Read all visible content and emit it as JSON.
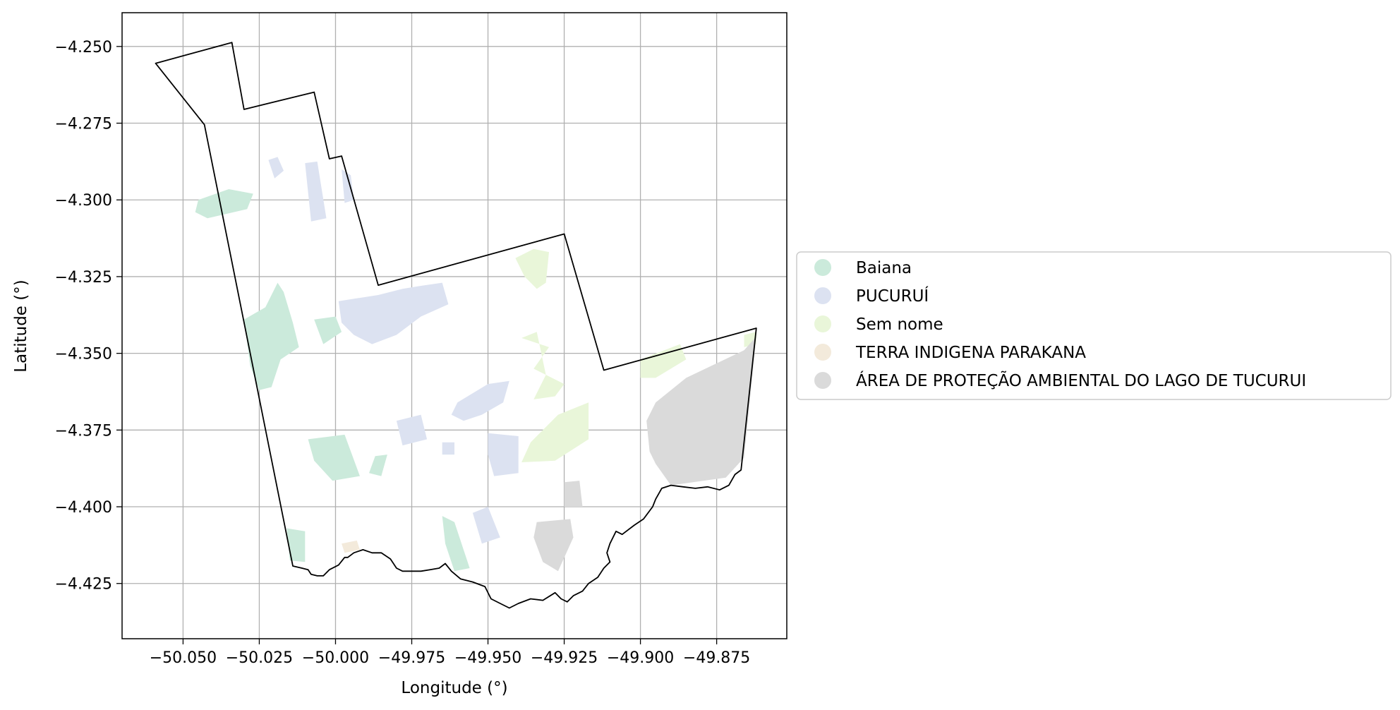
{
  "map": {
    "xlabel": "Longitude (°)",
    "ylabel": "Latitude (°)",
    "xlim": [
      -50.07,
      -49.852
    ],
    "ylim": [
      -4.443,
      -4.239
    ],
    "grid": true,
    "x_ticks": [
      {
        "value": -50.05,
        "label": "−50.050"
      },
      {
        "value": -50.025,
        "label": "−50.025"
      },
      {
        "value": -50.0,
        "label": "−50.000"
      },
      {
        "value": -49.975,
        "label": "−49.975"
      },
      {
        "value": -49.95,
        "label": "−49.950"
      },
      {
        "value": -49.925,
        "label": "−49.925"
      },
      {
        "value": -49.9,
        "label": "−49.900"
      },
      {
        "value": -49.875,
        "label": "−49.875"
      }
    ],
    "y_ticks": [
      {
        "value": -4.25,
        "label": "−4.250"
      },
      {
        "value": -4.275,
        "label": "−4.275"
      },
      {
        "value": -4.3,
        "label": "−4.300"
      },
      {
        "value": -4.325,
        "label": "−4.325"
      },
      {
        "value": -4.35,
        "label": "−4.350"
      },
      {
        "value": -4.375,
        "label": "−4.375"
      },
      {
        "value": -4.4,
        "label": "−4.400"
      },
      {
        "value": -4.425,
        "label": "−4.425"
      }
    ],
    "legend_position": "center-right",
    "boundary": [
      [
        -50.059,
        -4.2555
      ],
      [
        -50.034,
        -4.2487
      ],
      [
        -50.03,
        -4.2705
      ],
      [
        -50.007,
        -4.2649
      ],
      [
        -50.002,
        -4.2866
      ],
      [
        -49.998,
        -4.2857
      ],
      [
        -49.986,
        -4.3278
      ],
      [
        -49.925,
        -4.3111
      ],
      [
        -49.912,
        -4.3555
      ],
      [
        -49.862,
        -4.3418
      ],
      [
        -49.867,
        -4.388
      ],
      [
        -49.869,
        -4.3895
      ],
      [
        -49.871,
        -4.393
      ],
      [
        -49.874,
        -4.3945
      ],
      [
        -49.878,
        -4.3935
      ],
      [
        -49.882,
        -4.394
      ],
      [
        -49.886,
        -4.3935
      ],
      [
        -49.89,
        -4.393
      ],
      [
        -49.893,
        -4.394
      ],
      [
        -49.895,
        -4.3975
      ],
      [
        -49.896,
        -4.4
      ],
      [
        -49.899,
        -4.404
      ],
      [
        -49.902,
        -4.406
      ],
      [
        -49.906,
        -4.409
      ],
      [
        -49.908,
        -4.408
      ],
      [
        -49.91,
        -4.412
      ],
      [
        -49.911,
        -4.415
      ],
      [
        -49.91,
        -4.418
      ],
      [
        -49.912,
        -4.42
      ],
      [
        -49.914,
        -4.423
      ],
      [
        -49.917,
        -4.425
      ],
      [
        -49.919,
        -4.4275
      ],
      [
        -49.922,
        -4.429
      ],
      [
        -49.924,
        -4.431
      ],
      [
        -49.926,
        -4.43
      ],
      [
        -49.928,
        -4.428
      ],
      [
        -49.932,
        -4.4305
      ],
      [
        -49.936,
        -4.43
      ],
      [
        -49.94,
        -4.4315
      ],
      [
        -49.943,
        -4.433
      ],
      [
        -49.946,
        -4.4315
      ],
      [
        -49.949,
        -4.43
      ],
      [
        -49.951,
        -4.426
      ],
      [
        -49.955,
        -4.4245
      ],
      [
        -49.959,
        -4.4235
      ],
      [
        -49.962,
        -4.421
      ],
      [
        -49.964,
        -4.4185
      ],
      [
        -49.966,
        -4.42
      ],
      [
        -49.969,
        -4.4205
      ],
      [
        -49.972,
        -4.421
      ],
      [
        -49.975,
        -4.421
      ],
      [
        -49.978,
        -4.421
      ],
      [
        -49.98,
        -4.42
      ],
      [
        -49.982,
        -4.417
      ],
      [
        -49.985,
        -4.415
      ],
      [
        -49.988,
        -4.415
      ],
      [
        -49.991,
        -4.414
      ],
      [
        -49.994,
        -4.415
      ],
      [
        -49.996,
        -4.4165
      ],
      [
        -49.997,
        -4.4165
      ],
      [
        -49.999,
        -4.419
      ],
      [
        -50.002,
        -4.4205
      ],
      [
        -50.004,
        -4.4225
      ],
      [
        -50.006,
        -4.4225
      ],
      [
        -50.008,
        -4.422
      ],
      [
        -50.009,
        -4.4205
      ],
      [
        -50.011,
        -4.42
      ],
      [
        -50.014,
        -4.4193
      ],
      [
        -50.043,
        -4.2755
      ],
      [
        -50.059,
        -4.2555
      ]
    ],
    "layers": [
      {
        "name": "Baiana",
        "color": "#cbeadb",
        "patches": [
          [
            [
              -50.045,
              -4.3
            ],
            [
              -50.035,
              -4.2965
            ],
            [
              -50.027,
              -4.298
            ],
            [
              -50.029,
              -4.303
            ],
            [
              -50.042,
              -4.306
            ],
            [
              -50.046,
              -4.304
            ]
          ],
          [
            [
              -50.03,
              -4.339
            ],
            [
              -50.023,
              -4.335
            ],
            [
              -50.019,
              -4.327
            ],
            [
              -50.017,
              -4.33
            ],
            [
              -50.014,
              -4.34
            ],
            [
              -50.012,
              -4.348
            ],
            [
              -50.018,
              -4.352
            ],
            [
              -50.021,
              -4.361
            ],
            [
              -50.025,
              -4.362
            ],
            [
              -50.028,
              -4.354
            ]
          ],
          [
            [
              -50.007,
              -4.339
            ],
            [
              -50.0,
              -4.338
            ],
            [
              -49.998,
              -4.343
            ],
            [
              -50.004,
              -4.347
            ]
          ],
          [
            [
              -50.009,
              -4.378
            ],
            [
              -49.997,
              -4.3765
            ],
            [
              -49.992,
              -4.39
            ],
            [
              -50.001,
              -4.3915
            ],
            [
              -50.007,
              -4.385
            ]
          ],
          [
            [
              -49.987,
              -4.3835
            ],
            [
              -49.983,
              -4.383
            ],
            [
              -49.985,
              -4.39
            ],
            [
              -49.989,
              -4.389
            ]
          ],
          [
            [
              -50.016,
              -4.407
            ],
            [
              -50.01,
              -4.408
            ],
            [
              -50.01,
              -4.418
            ],
            [
              -50.015,
              -4.4175
            ]
          ],
          [
            [
              -49.965,
              -4.403
            ],
            [
              -49.961,
              -4.405
            ],
            [
              -49.956,
              -4.42
            ],
            [
              -49.961,
              -4.421
            ],
            [
              -49.964,
              -4.412
            ]
          ]
        ]
      },
      {
        "name": "PUCURUÍ",
        "color": "#dce2f1",
        "patches": [
          [
            [
              -50.022,
              -4.287
            ],
            [
              -50.019,
              -4.286
            ],
            [
              -50.017,
              -4.2905
            ],
            [
              -50.02,
              -4.293
            ]
          ],
          [
            [
              -50.01,
              -4.288
            ],
            [
              -50.006,
              -4.2875
            ],
            [
              -50.003,
              -4.306
            ],
            [
              -50.008,
              -4.307
            ]
          ],
          [
            [
              -49.998,
              -4.29
            ],
            [
              -49.995,
              -4.292
            ],
            [
              -49.994,
              -4.3
            ],
            [
              -49.997,
              -4.301
            ]
          ],
          [
            [
              -49.999,
              -4.333
            ],
            [
              -49.986,
              -4.331
            ],
            [
              -49.978,
              -4.329
            ],
            [
              -49.972,
              -4.328
            ],
            [
              -49.965,
              -4.327
            ],
            [
              -49.963,
              -4.334
            ],
            [
              -49.972,
              -4.338
            ],
            [
              -49.98,
              -4.344
            ],
            [
              -49.988,
              -4.347
            ],
            [
              -49.994,
              -4.344
            ],
            [
              -49.998,
              -4.34
            ]
          ],
          [
            [
              -49.96,
              -4.366
            ],
            [
              -49.95,
              -4.36
            ],
            [
              -49.943,
              -4.359
            ],
            [
              -49.945,
              -4.366
            ],
            [
              -49.952,
              -4.37
            ],
            [
              -49.958,
              -4.372
            ],
            [
              -49.962,
              -4.37
            ]
          ],
          [
            [
              -49.95,
              -4.376
            ],
            [
              -49.94,
              -4.377
            ],
            [
              -49.94,
              -4.389
            ],
            [
              -49.948,
              -4.39
            ],
            [
              -49.95,
              -4.383
            ]
          ],
          [
            [
              -49.98,
              -4.372
            ],
            [
              -49.972,
              -4.37
            ],
            [
              -49.97,
              -4.378
            ],
            [
              -49.978,
              -4.38
            ]
          ],
          [
            [
              -49.965,
              -4.379
            ],
            [
              -49.961,
              -4.379
            ],
            [
              -49.961,
              -4.383
            ],
            [
              -49.965,
              -4.383
            ]
          ],
          [
            [
              -49.955,
              -4.402
            ],
            [
              -49.95,
              -4.4
            ],
            [
              -49.946,
              -4.41
            ],
            [
              -49.952,
              -4.412
            ]
          ]
        ]
      },
      {
        "name": "Sem nome",
        "color": "#e9f6d9",
        "patches": [
          [
            [
              -49.941,
              -4.319
            ],
            [
              -49.935,
              -4.316
            ],
            [
              -49.93,
              -4.317
            ],
            [
              -49.931,
              -4.327
            ],
            [
              -49.934,
              -4.329
            ],
            [
              -49.938,
              -4.325
            ]
          ],
          [
            [
              -49.939,
              -4.345
            ],
            [
              -49.934,
              -4.343
            ],
            [
              -49.931,
              -4.357
            ],
            [
              -49.935,
              -4.365
            ],
            [
              -49.928,
              -4.364
            ],
            [
              -49.925,
              -4.36
            ],
            [
              -49.935,
              -4.355
            ],
            [
              -49.93,
              -4.348
            ]
          ],
          [
            [
              -49.927,
              -4.37
            ],
            [
              -49.917,
              -4.366
            ],
            [
              -49.917,
              -4.378
            ],
            [
              -49.928,
              -4.385
            ],
            [
              -49.939,
              -4.3855
            ],
            [
              -49.936,
              -4.379
            ]
          ],
          [
            [
              -49.9,
              -4.352
            ],
            [
              -49.887,
              -4.347
            ],
            [
              -49.885,
              -4.352
            ],
            [
              -49.895,
              -4.358
            ],
            [
              -49.9,
              -4.358
            ]
          ],
          [
            [
              -49.866,
              -4.344
            ],
            [
              -49.862,
              -4.343
            ],
            [
              -49.862,
              -4.347
            ],
            [
              -49.866,
              -4.348
            ]
          ]
        ]
      },
      {
        "name": "TERRA INDIGENA PARAKANA",
        "color": "#f3eadb",
        "patches": [
          [
            [
              -49.998,
              -4.412
            ],
            [
              -49.993,
              -4.411
            ],
            [
              -49.992,
              -4.414
            ],
            [
              -49.997,
              -4.415
            ]
          ]
        ]
      },
      {
        "name": "ÁREA DE PROTEÇÃO AMBIENTAL DO LAGO DE TUCURUI",
        "color": "#dadada",
        "patches": [
          [
            [
              -49.885,
              -4.358
            ],
            [
              -49.866,
              -4.349
            ],
            [
              -49.862,
              -4.3445
            ],
            [
              -49.866,
              -4.384
            ],
            [
              -49.872,
              -4.3905
            ],
            [
              -49.89,
              -4.393
            ],
            [
              -49.895,
              -4.386
            ],
            [
              -49.897,
              -4.382
            ],
            [
              -49.898,
              -4.372
            ],
            [
              -49.895,
              -4.366
            ]
          ],
          [
            [
              -49.925,
              -4.392
            ],
            [
              -49.92,
              -4.3915
            ],
            [
              -49.919,
              -4.4
            ],
            [
              -49.925,
              -4.4
            ]
          ],
          [
            [
              -49.934,
              -4.405
            ],
            [
              -49.923,
              -4.404
            ],
            [
              -49.922,
              -4.41
            ],
            [
              -49.927,
              -4.421
            ],
            [
              -49.932,
              -4.418
            ],
            [
              -49.935,
              -4.41
            ]
          ]
        ]
      }
    ]
  },
  "legend": {
    "items": [
      {
        "label": "Baiana",
        "color": "#cbeadb"
      },
      {
        "label": "PUCURUÍ",
        "color": "#dce2f1"
      },
      {
        "label": "Sem nome",
        "color": "#e9f6d9"
      },
      {
        "label": "TERRA INDIGENA PARAKANA",
        "color": "#f3eadb"
      },
      {
        "label": "ÁREA DE PROTEÇÃO AMBIENTAL DO LAGO DE TUCURUI",
        "color": "#dadada"
      }
    ]
  }
}
